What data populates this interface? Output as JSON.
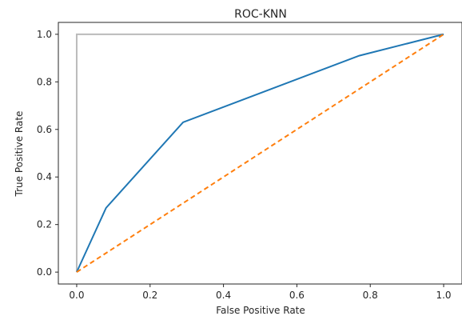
{
  "chart_data": {
    "type": "line",
    "title": "ROC-KNN",
    "xlabel": "False Positive Rate",
    "ylabel": "True Positive Rate",
    "xlim": [
      -0.05,
      1.05
    ],
    "ylim": [
      -0.05,
      1.05
    ],
    "xticks": [
      0.0,
      0.2,
      0.4,
      0.6,
      0.8,
      1.0
    ],
    "yticks": [
      0.0,
      0.2,
      0.4,
      0.6,
      0.8,
      1.0
    ],
    "xtick_labels": [
      "0.0",
      "0.2",
      "0.4",
      "0.6",
      "0.8",
      "1.0"
    ],
    "ytick_labels": [
      "0.0",
      "0.2",
      "0.4",
      "0.6",
      "0.8",
      "1.0"
    ],
    "grid": false,
    "series": [
      {
        "style": "solid",
        "color": "#bbbbbb",
        "x": [
          0.0,
          0.0,
          1.0
        ],
        "y": [
          0.0,
          1.0,
          1.0
        ]
      },
      {
        "style": "solid",
        "color": "#1f77b4",
        "x": [
          0.0,
          0.08,
          0.29,
          0.77,
          1.0
        ],
        "y": [
          0.0,
          0.27,
          0.63,
          0.91,
          1.0
        ]
      },
      {
        "style": "dashed",
        "color": "#ff7f0e",
        "x": [
          0.0,
          1.0
        ],
        "y": [
          0.0,
          1.0
        ]
      }
    ]
  }
}
